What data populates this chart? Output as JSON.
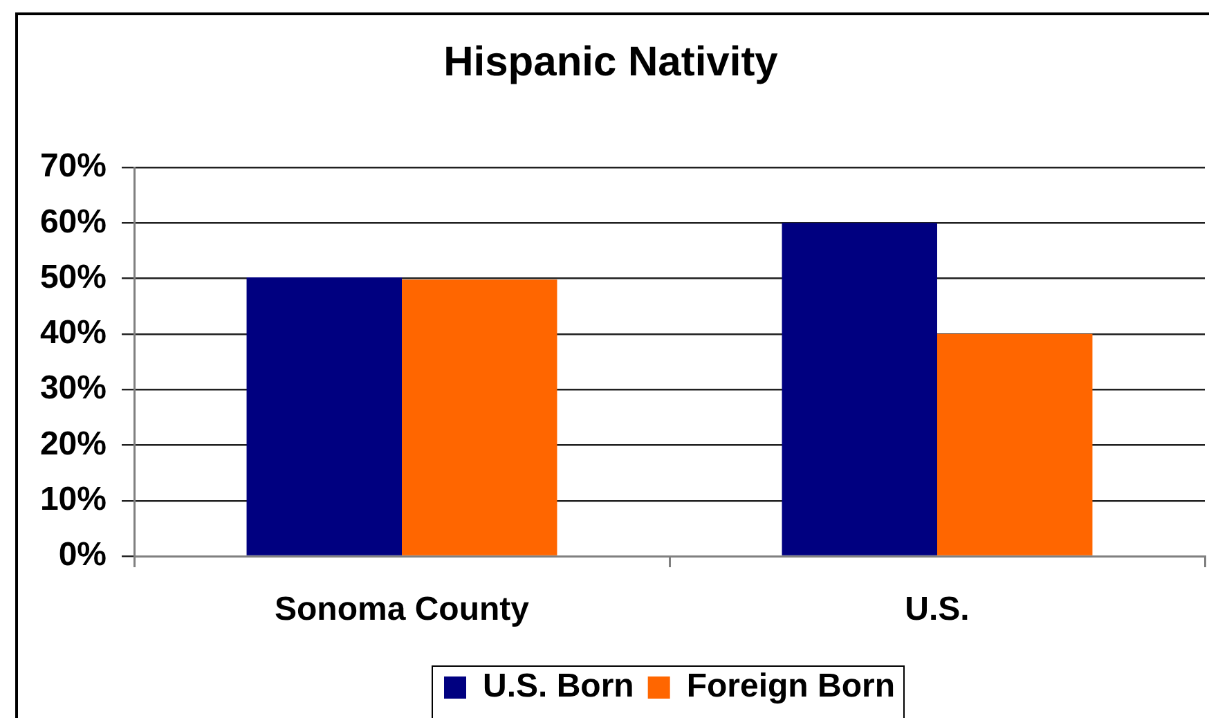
{
  "chart_data": {
    "type": "bar",
    "title": "Hispanic Nativity",
    "categories": [
      "Sonoma County",
      "U.S."
    ],
    "series": [
      {
        "name": "U.S. Born",
        "color": "#000080",
        "values": [
          50.2,
          60
        ]
      },
      {
        "name": "Foreign Born",
        "color": "#ff6600",
        "values": [
          49.8,
          40
        ]
      }
    ],
    "ylim": [
      0,
      70
    ],
    "yticks": [
      {
        "value": 0,
        "label": "0%"
      },
      {
        "value": 10,
        "label": "10%"
      },
      {
        "value": 20,
        "label": "20%"
      },
      {
        "value": 30,
        "label": "30%"
      },
      {
        "value": 40,
        "label": "40%"
      },
      {
        "value": 50,
        "label": "50%"
      },
      {
        "value": 60,
        "label": "60%"
      },
      {
        "value": 70,
        "label": "70%"
      }
    ],
    "grid": "y",
    "legend": "bottom"
  }
}
